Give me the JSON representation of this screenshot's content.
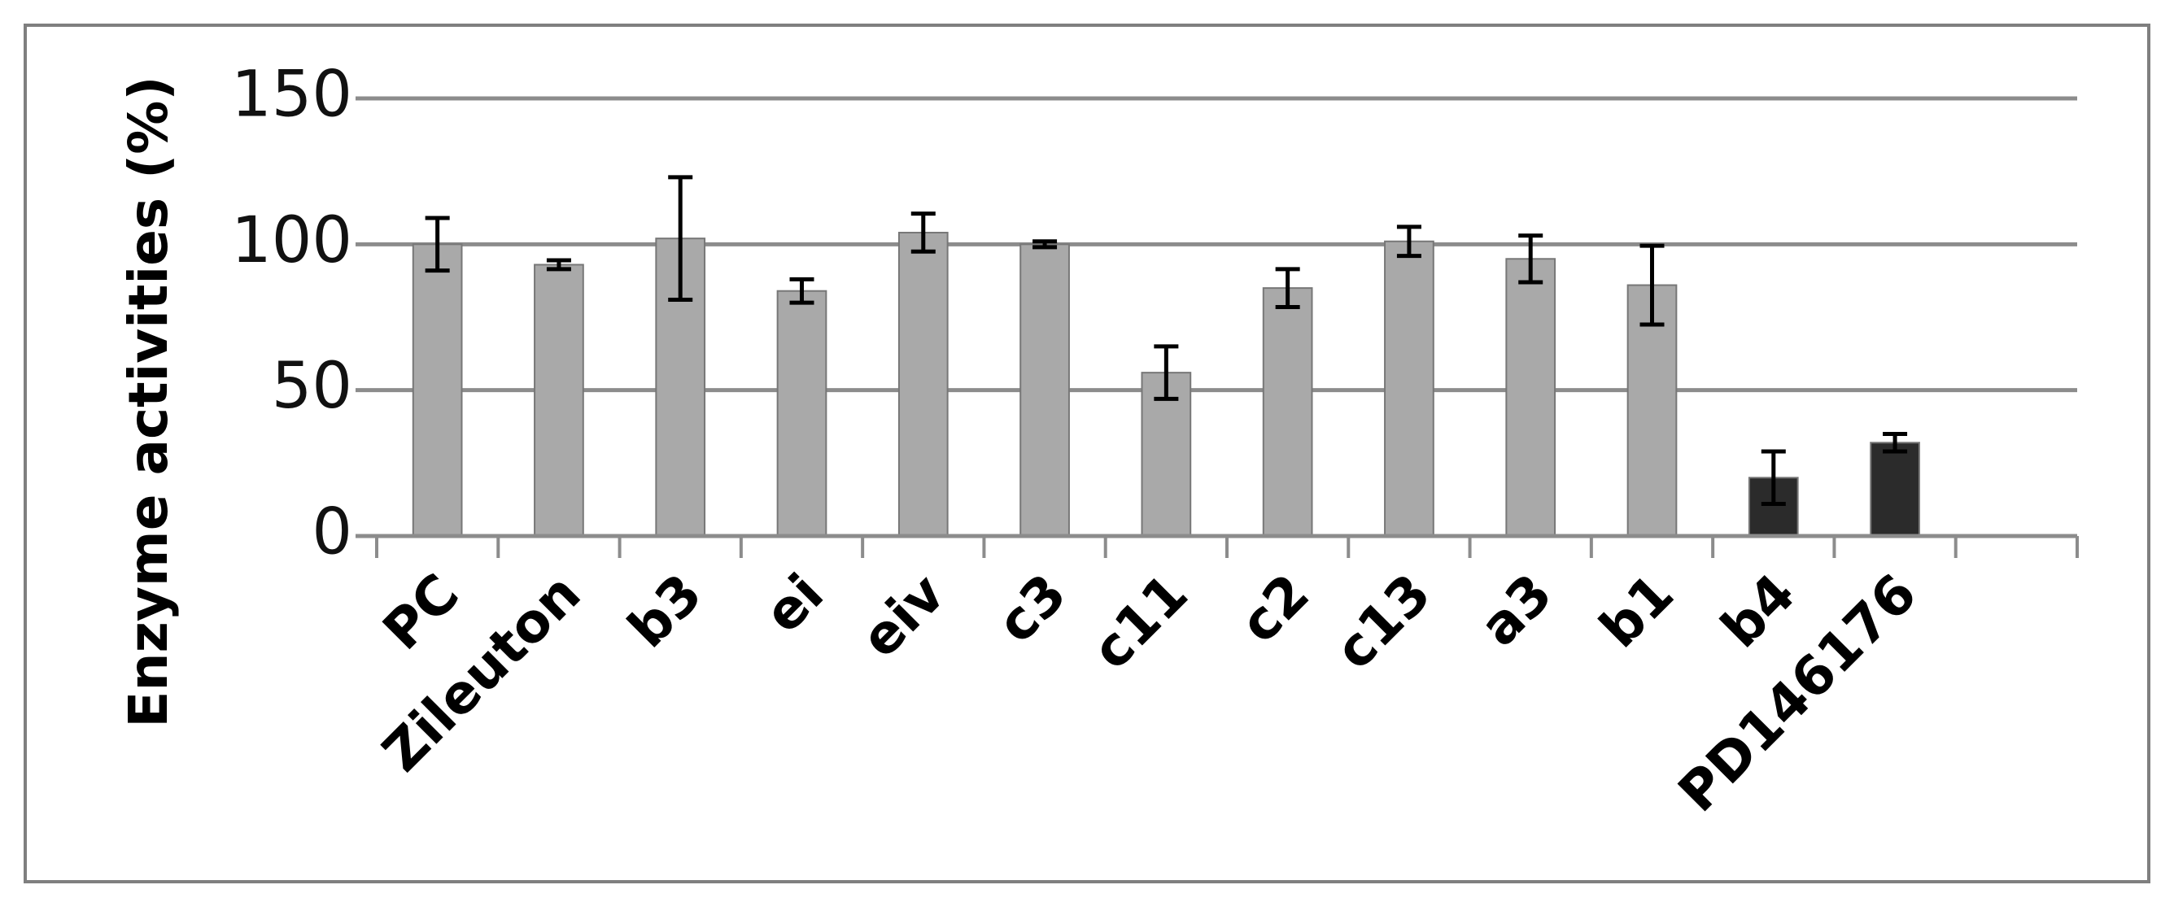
{
  "chart_data": {
    "type": "bar",
    "y_label": "Enzyme activities (%)",
    "categories": [
      "PC",
      "Zileuton",
      "b3",
      "ei",
      "eiv",
      "c3",
      "c11",
      "c2",
      "c13",
      "a3",
      "b1",
      "b4",
      "PD146176",
      null
    ],
    "values": [
      100,
      93,
      102,
      84,
      104,
      100,
      56,
      85,
      101,
      95,
      86,
      20,
      32,
      null
    ],
    "errors": [
      9,
      1.5,
      21,
      4,
      6.5,
      1,
      9,
      6.5,
      5,
      8,
      13.5,
      9,
      3,
      null
    ],
    "colors": [
      "#a9a9a9",
      "#a9a9a9",
      "#a9a9a9",
      "#a9a9a9",
      "#a9a9a9",
      "#a9a9a9",
      "#a9a9a9",
      "#a9a9a9",
      "#a9a9a9",
      "#a9a9a9",
      "#a9a9a9",
      "#2b2b2b",
      "#2b2b2b",
      null
    ],
    "ylim": [
      0,
      150
    ],
    "yticks": [
      0,
      50,
      100,
      150
    ],
    "grid": true
  }
}
